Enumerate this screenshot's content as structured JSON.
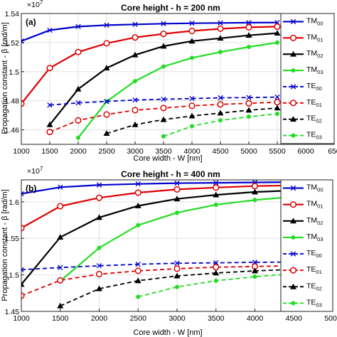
{
  "chart_data": [
    {
      "type": "line",
      "panel": "(a)",
      "title": "Core height - h = 200 nm",
      "xlabel": "Core width - W [nm]",
      "ylabel": "Propagation constant - β [rad/m]",
      "exponent_label": "×10",
      "exponent_power": "7",
      "xlim": [
        1000,
        6500
      ],
      "ylim": [
        1.45,
        1.54
      ],
      "xticks": [
        "1000",
        "1500",
        "2000",
        "2500",
        "3000",
        "3500",
        "4000",
        "4500",
        "5000",
        "5500",
        "6000",
        "650"
      ],
      "yticks": [
        "1.46",
        "1.48",
        "1.5",
        "1.52",
        "1.54"
      ],
      "grid": true,
      "legend_position": "right",
      "series": [
        {
          "name": "TM",
          "sub": "00",
          "color": "#0000cc",
          "dash": "solid",
          "marker": "x",
          "x": [
            1000,
            1500,
            2000,
            2500,
            3000,
            3500,
            4000,
            4500,
            5000,
            5500
          ],
          "values": [
            1.521,
            1.5285,
            1.531,
            1.532,
            1.5325,
            1.533,
            1.5333,
            1.5335,
            1.5337,
            1.5338
          ]
        },
        {
          "name": "TM",
          "sub": "01",
          "color": "#dd0000",
          "dash": "solid",
          "marker": "o",
          "x": [
            1000,
            1500,
            2000,
            2500,
            3000,
            3500,
            4000,
            4500,
            5000,
            5500
          ],
          "values": [
            1.478,
            1.5025,
            1.5135,
            1.5195,
            1.5235,
            1.526,
            1.528,
            1.5295,
            1.5305,
            1.531
          ]
        },
        {
          "name": "TM",
          "sub": "02",
          "color": "#000000",
          "dash": "solid",
          "marker": "triangle",
          "x": [
            1500,
            2000,
            2500,
            3000,
            3500,
            4000,
            4500,
            5000,
            5500
          ],
          "values": [
            1.4635,
            1.488,
            1.5025,
            1.5115,
            1.5175,
            1.521,
            1.523,
            1.525,
            1.5265
          ]
        },
        {
          "name": "TM",
          "sub": "03",
          "color": "#22dd22",
          "dash": "solid",
          "marker": "dot",
          "x": [
            2000,
            2500,
            3000,
            3500,
            4000,
            4500,
            5000,
            5500
          ],
          "values": [
            1.4545,
            1.4795,
            1.4935,
            1.5035,
            1.5095,
            1.5135,
            1.517,
            1.52
          ]
        },
        {
          "name": "TE",
          "sub": "00",
          "color": "#0000cc",
          "dash": "dashed",
          "marker": "x",
          "x": [
            1500,
            2000,
            2500,
            3000,
            3500,
            4000,
            4500,
            5000,
            5500
          ],
          "values": [
            1.477,
            1.4785,
            1.4795,
            1.4805,
            1.481,
            1.4815,
            1.482,
            1.4822,
            1.4825
          ]
        },
        {
          "name": "TE",
          "sub": "01",
          "color": "#dd0000",
          "dash": "dashed",
          "marker": "o",
          "x": [
            1500,
            2000,
            2500,
            3000,
            3500,
            4000,
            4500,
            5000,
            5500
          ],
          "values": [
            1.4585,
            1.4665,
            1.4705,
            1.4735,
            1.475,
            1.4765,
            1.4775,
            1.4782,
            1.479
          ]
        },
        {
          "name": "TE",
          "sub": "02",
          "color": "#000000",
          "dash": "dashed",
          "marker": "triangle",
          "x": [
            2500,
            3000,
            3500,
            4000,
            4500,
            5000,
            5500
          ],
          "values": [
            1.4575,
            1.4635,
            1.467,
            1.4695,
            1.4715,
            1.4735,
            1.475
          ]
        },
        {
          "name": "TE",
          "sub": "03",
          "color": "#22dd22",
          "dash": "dashed",
          "marker": "dot",
          "x": [
            3500,
            4000,
            4500,
            5000,
            5500
          ],
          "values": [
            1.4555,
            1.4625,
            1.4665,
            1.469,
            1.471
          ]
        }
      ]
    },
    {
      "type": "line",
      "panel": "(b)",
      "title": "Core height - h = 400 nm",
      "xlabel": "Core width - W [nm]",
      "ylabel": "Propagation constant - β [rad/m]",
      "exponent_label": "×10",
      "exponent_power": "7",
      "xlim": [
        1000,
        5000
      ],
      "ylim": [
        1.45,
        1.63
      ],
      "xticks": [
        "1000",
        "1500",
        "2000",
        "2500",
        "3000",
        "3500",
        "4000",
        "4500",
        "5000"
      ],
      "yticks": [
        "1.45",
        "1.5",
        "1.55",
        "1.6"
      ],
      "grid": true,
      "legend_position": "right",
      "series": [
        {
          "name": "TM",
          "sub": "00",
          "color": "#0000cc",
          "dash": "solid",
          "marker": "x",
          "x": [
            1000,
            1500,
            2000,
            2500,
            3000,
            3500,
            4000,
            4500
          ],
          "values": [
            1.611,
            1.62,
            1.623,
            1.6245,
            1.6255,
            1.626,
            1.6265,
            1.627
          ]
        },
        {
          "name": "TM",
          "sub": "01",
          "color": "#dd0000",
          "dash": "solid",
          "marker": "o",
          "x": [
            1000,
            1500,
            2000,
            2500,
            3000,
            3500,
            4000,
            4500
          ],
          "values": [
            1.564,
            1.594,
            1.6055,
            1.6125,
            1.617,
            1.6195,
            1.6215,
            1.6225
          ]
        },
        {
          "name": "TM",
          "sub": "02",
          "color": "#000000",
          "dash": "solid",
          "marker": "triangle",
          "x": [
            1000,
            1500,
            2000,
            2500,
            3000,
            3500,
            4000,
            4500
          ],
          "values": [
            1.487,
            1.5515,
            1.5785,
            1.5945,
            1.604,
            1.6095,
            1.6135,
            1.6155
          ]
        },
        {
          "name": "TM",
          "sub": "03",
          "color": "#22dd22",
          "dash": "solid",
          "marker": "dot",
          "x": [
            1500,
            2000,
            2500,
            3000,
            3500,
            4000,
            4500
          ],
          "values": [
            1.4915,
            1.537,
            1.568,
            1.585,
            1.596,
            1.6025,
            1.607
          ]
        },
        {
          "name": "TE",
          "sub": "00",
          "color": "#0000cc",
          "dash": "dashed",
          "marker": "x",
          "x": [
            1000,
            1500,
            2000,
            2500,
            3000,
            3500,
            4000,
            4500
          ],
          "values": [
            1.507,
            1.51,
            1.5125,
            1.5145,
            1.516,
            1.5165,
            1.5172,
            1.5175
          ]
        },
        {
          "name": "TE",
          "sub": "01",
          "color": "#dd0000",
          "dash": "dashed",
          "marker": "o",
          "x": [
            1000,
            1500,
            2000,
            2500,
            3000,
            3500,
            4000,
            4500
          ],
          "values": [
            1.4715,
            1.4925,
            1.501,
            1.5055,
            1.5085,
            1.5105,
            1.5115,
            1.5125
          ]
        },
        {
          "name": "TE",
          "sub": "02",
          "color": "#000000",
          "dash": "dashed",
          "marker": "triangle",
          "x": [
            1500,
            2000,
            2500,
            3000,
            3500,
            4000,
            4500
          ],
          "values": [
            1.4575,
            1.481,
            1.492,
            1.4985,
            1.5025,
            1.5055,
            1.5075
          ]
        },
        {
          "name": "TE",
          "sub": "03",
          "color": "#22dd22",
          "dash": "dashed",
          "marker": "dot",
          "x": [
            2500,
            3000,
            3500,
            4000,
            4500
          ],
          "values": [
            1.47,
            1.4835,
            1.492,
            1.4975,
            1.5015
          ]
        }
      ]
    }
  ]
}
